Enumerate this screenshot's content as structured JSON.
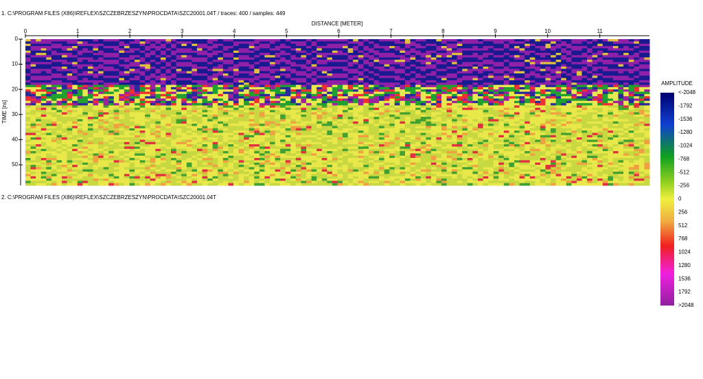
{
  "panel1": {
    "title": "1. C:\\PROGRAM FILES (X86)\\REFLEX\\SZCZEBRZESZYN\\PROCDATA\\SZC20001.04T / traces: 400 / samples: 449",
    "x_axis_title": "DISTANCE [METER]",
    "y_axis_title": "TIME [ns]",
    "xlim": [
      0,
      11.95
    ],
    "xticks": [
      0,
      1,
      2,
      3,
      4,
      5,
      6,
      7,
      8,
      9,
      10,
      11
    ],
    "ylim": [
      0,
      58.2
    ],
    "yticks": [
      0,
      10,
      20,
      30,
      40,
      50
    ]
  },
  "panel2": {
    "title": "2. C:\\PROGRAM FILES (X86)\\REFLEX\\SZCZEBRZESZYN\\PROCDATA\\SZC20001.04T"
  },
  "colorbar": {
    "title": "AMPLITUDE",
    "labels": [
      "<-2048",
      "-1792",
      "-1536",
      "-1280",
      "-1024",
      "-768",
      "-512",
      "-256",
      "0",
      "256",
      "512",
      "768",
      "1024",
      "1280",
      "1536",
      "1792",
      ">2048"
    ]
  }
}
